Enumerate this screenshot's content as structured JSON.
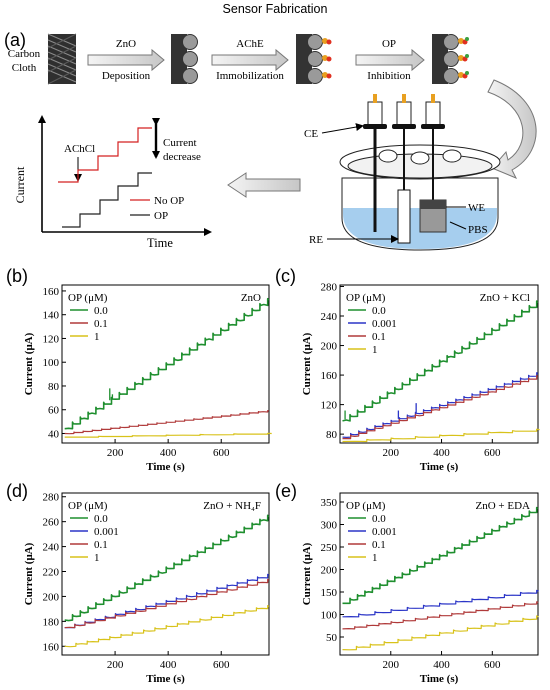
{
  "header": {
    "title": "Sensor Fabrication"
  },
  "panel_a": {
    "tag": "(a)",
    "carbon_cloth": [
      "Carbon",
      "Cloth"
    ],
    "steps": [
      {
        "top": "ZnO",
        "bottom": "Deposition"
      },
      {
        "top": "AChE",
        "bottom": "Immobilization"
      },
      {
        "top": "OP",
        "bottom": "Inhibition"
      }
    ],
    "schematic": {
      "ylabel": "Current",
      "xlabel": "Time",
      "injection_label": "AChCl",
      "annotation": [
        "Current",
        "decrease"
      ],
      "legend": [
        {
          "name": "No OP",
          "color": "#d42020"
        },
        {
          "name": "OP",
          "color": "#222222"
        }
      ]
    },
    "cell_labels": {
      "ce": "CE",
      "re": "RE",
      "we": "WE",
      "pbs": "PBS"
    }
  },
  "chart_data": [
    {
      "id": "b",
      "tag": "(b)",
      "type": "line",
      "annotation": "ZnO",
      "xlabel": "Time (s)",
      "ylabel": "Current (μA)",
      "xlim": [
        0,
        780
      ],
      "ylim": [
        32,
        165
      ],
      "xticks": [
        200,
        400,
        600
      ],
      "yticks": [
        40,
        60,
        80,
        100,
        120,
        140,
        160
      ],
      "legend_title": "OP (μM)",
      "series": [
        {
          "name": "0.0",
          "color": "#1f8f2f",
          "start": 44,
          "end": 152,
          "steps": 26,
          "spikes": [
            [
              180,
              78
            ],
            [
              190,
              73
            ]
          ]
        },
        {
          "name": "0.1",
          "color": "#b03a3a",
          "start": 40,
          "end": 59,
          "steps": 22
        },
        {
          "name": "1",
          "color": "#d8c21a",
          "start": 37,
          "end": 40,
          "steps": 6
        }
      ]
    },
    {
      "id": "c",
      "tag": "(c)",
      "type": "line",
      "annotation": "ZnO + KCl",
      "xlabel": "Time (s)",
      "ylabel": "Current (μA)",
      "xlim": [
        0,
        780
      ],
      "ylim": [
        68,
        282
      ],
      "xticks": [
        200,
        400,
        600
      ],
      "yticks": [
        80,
        120,
        160,
        200,
        240,
        280
      ],
      "legend_title": "OP (μM)",
      "series": [
        {
          "name": "0.0",
          "color": "#1f8f2f",
          "start": 98,
          "end": 258,
          "steps": 26,
          "spikes": [
            [
              20,
              112
            ]
          ]
        },
        {
          "name": "0.001",
          "color": "#2b35c7",
          "start": 76,
          "end": 162,
          "steps": 24,
          "spikes": [
            [
              230,
              112
            ],
            [
              300,
              122
            ]
          ]
        },
        {
          "name": "0.1",
          "color": "#b03a3a",
          "start": 74,
          "end": 158,
          "steps": 24
        },
        {
          "name": "1",
          "color": "#d8c21a",
          "start": 70,
          "end": 86,
          "steps": 8
        }
      ]
    },
    {
      "id": "d",
      "tag": "(d)",
      "type": "line",
      "annotation": "ZnO + NH₄F",
      "xlabel": "Time (s)",
      "ylabel": "Current (μA)",
      "xlim": [
        0,
        780
      ],
      "ylim": [
        153,
        283
      ],
      "xticks": [
        200,
        400,
        600
      ],
      "yticks": [
        160,
        180,
        200,
        220,
        240,
        260,
        280
      ],
      "legend_title": "OP (μM)",
      "series": [
        {
          "name": "0.0",
          "color": "#1f8f2f",
          "start": 181,
          "end": 264,
          "steps": 26
        },
        {
          "name": "0.001",
          "color": "#2b35c7",
          "start": 175,
          "end": 217,
          "steps": 20
        },
        {
          "name": "0.1",
          "color": "#b03a3a",
          "start": 175,
          "end": 213,
          "steps": 20
        },
        {
          "name": "1",
          "color": "#d8c21a",
          "start": 160,
          "end": 192,
          "steps": 18
        }
      ]
    },
    {
      "id": "e",
      "tag": "(e)",
      "type": "line",
      "annotation": "ZnO + EDA",
      "xlabel": "Time (s)",
      "ylabel": "Current (μA)",
      "xlim": [
        0,
        780
      ],
      "ylim": [
        10,
        370
      ],
      "xticks": [
        200,
        400,
        600
      ],
      "yticks": [
        50,
        100,
        150,
        200,
        250,
        300,
        350
      ],
      "legend_title": "OP (μM)",
      "series": [
        {
          "name": "0.0",
          "color": "#1f8f2f",
          "start": 125,
          "end": 335,
          "steps": 26
        },
        {
          "name": "0.001",
          "color": "#2b35c7",
          "start": 95,
          "end": 152,
          "steps": 12
        },
        {
          "name": "0.1",
          "color": "#b03a3a",
          "start": 68,
          "end": 127,
          "steps": 16
        },
        {
          "name": "1",
          "color": "#d8c21a",
          "start": 22,
          "end": 95,
          "steps": 14
        }
      ]
    }
  ]
}
